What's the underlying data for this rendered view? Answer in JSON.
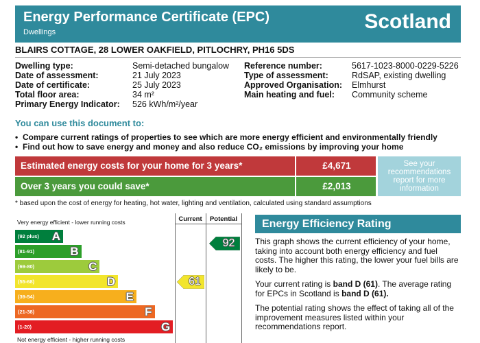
{
  "header": {
    "title": "Energy Performance Certificate (EPC)",
    "subtitle": "Dwellings",
    "region": "Scotland"
  },
  "address": "BLAIRS COTTAGE, 28 LOWER OAKFIELD, PITLOCHRY, PH16 5DS",
  "details": {
    "left": [
      [
        "Dwelling type:",
        "Semi-detached bungalow"
      ],
      [
        "Date of assessment:",
        "21 July 2023"
      ],
      [
        "Date of certificate:",
        "25 July 2023"
      ],
      [
        "Total floor area:",
        "34 m²"
      ],
      [
        "Primary Energy Indicator:",
        "526 kWh/m²/year"
      ]
    ],
    "right": [
      [
        "Reference number:",
        "5617-1023-8000-0229-5226"
      ],
      [
        "Type of assessment:",
        "RdSAP, existing dwelling"
      ],
      [
        "Approved Organisation:",
        "Elmhurst"
      ],
      [
        "Main heating and fuel:",
        "Community scheme"
      ]
    ]
  },
  "uses": {
    "heading": "You can use this document to:",
    "items": [
      "Compare current ratings of properties to see which are more energy efficient and environmentally friendly",
      "Find out how to save energy and money and also reduce CO₂ emissions by improving your home"
    ]
  },
  "costs": {
    "rows": [
      {
        "label": "Estimated energy costs for your home for 3 years*",
        "amount": "£4,671",
        "color": "#c0393b"
      },
      {
        "label": "Over 3 years you could save*",
        "amount": "£2,013",
        "color": "#4b9a3c"
      }
    ],
    "note": "See your recommendations report for more information"
  },
  "footnote": "* based upon the cost of energy for heating, hot water, lighting and ventilation, calculated using standard assumptions",
  "rating_chart": {
    "top_label": "Very energy efficient - lower running costs",
    "bottom_label": "Not energy efficient - higher running costs",
    "current_header": "Current",
    "potential_header": "Potential",
    "bands": [
      {
        "letter": "A",
        "range": "(92 plus)",
        "color": "#007f3d"
      },
      {
        "letter": "B",
        "range": "(81-91)",
        "color": "#2c9f29"
      },
      {
        "letter": "C",
        "range": "(69-80)",
        "color": "#9dcb3c"
      },
      {
        "letter": "D",
        "range": "(55-68)",
        "color": "#f2e52c"
      },
      {
        "letter": "E",
        "range": "(39-54)",
        "color": "#f7af1d"
      },
      {
        "letter": "F",
        "range": "(21-38)",
        "color": "#ed6823"
      },
      {
        "letter": "G",
        "range": "(1-20)",
        "color": "#e31d23"
      }
    ],
    "current": 61,
    "potential": 92
  },
  "efficiency": {
    "title": "Energy Efficiency Rating",
    "paragraphs": [
      [
        {
          "text": "This graph shows the current efficiency of your home, taking into account both energy efficiency and fuel costs. The higher this rating, the lower your fuel bills are likely to be.",
          "bold": false
        }
      ],
      [
        {
          "text": "Your current rating is ",
          "bold": false
        },
        {
          "text": "band D (61)",
          "bold": true
        },
        {
          "text": ". The average rating for EPCs in Scotland is ",
          "bold": false
        },
        {
          "text": "band D (61).",
          "bold": true
        }
      ],
      [
        {
          "text": "The potential rating shows the effect of taking all of the improvement measures listed within your recommendations report.",
          "bold": false
        }
      ]
    ]
  }
}
